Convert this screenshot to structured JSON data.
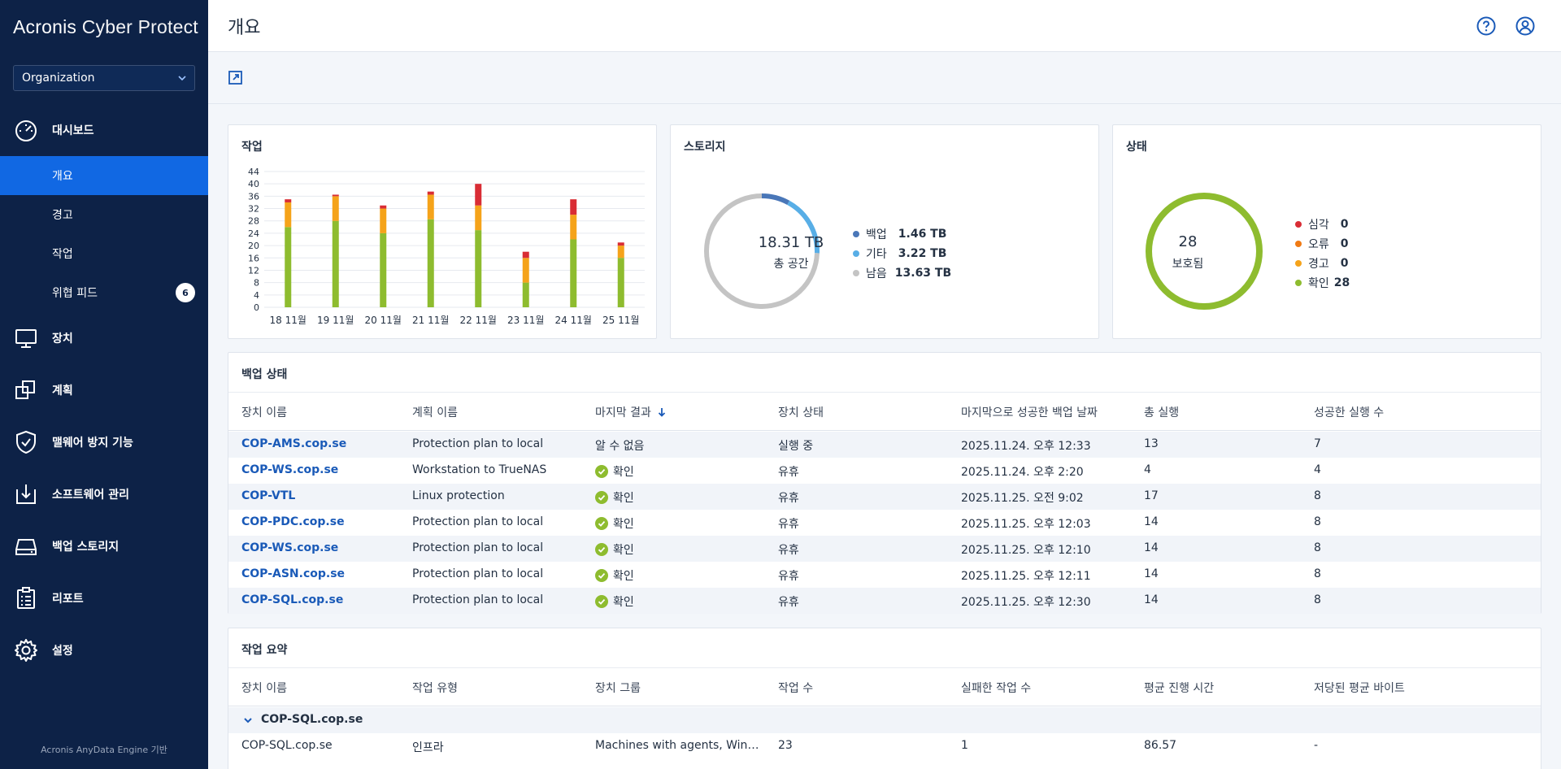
{
  "sidebar": {
    "logo_brand": "Acronis",
    "logo_product": "Cyber Protect",
    "org_select": "Organization",
    "dashboard": "대시보드",
    "sub_items": [
      {
        "label": "개요"
      },
      {
        "label": "경고"
      },
      {
        "label": "작업"
      },
      {
        "label": "위협 피드",
        "badge": "6"
      }
    ],
    "nav": [
      {
        "label": "장치",
        "icon": "monitor-icon"
      },
      {
        "label": "계획",
        "icon": "plans-icon"
      },
      {
        "label": "맬웨어 방지 기능",
        "icon": "shield-icon"
      },
      {
        "label": "소프트웨어 관리",
        "icon": "software-icon"
      },
      {
        "label": "백업 스토리지",
        "icon": "storage-icon"
      },
      {
        "label": "리포트",
        "icon": "clipboard-icon"
      },
      {
        "label": "설정",
        "icon": "gear-icon"
      }
    ],
    "footer": "Acronis AnyData Engine 기반"
  },
  "header": {
    "title": "개요"
  },
  "colors": {
    "sidebar_bg": "#0d2247",
    "active": "#1168e3",
    "ok": "#8ebc2f",
    "warning": "#f5a31a",
    "error": "#f07a14",
    "critical": "#d92d35",
    "backup": "#4a77b8",
    "other": "#58aee6",
    "free": "#c4c4c4",
    "link": "#1a5ab8"
  },
  "jobs_card": {
    "title": "작업",
    "chart_data": {
      "type": "bar",
      "stacked": true,
      "categories": [
        "18 11월",
        "19 11월",
        "20 11월",
        "21 11월",
        "22 11월",
        "23 11월",
        "24 11월",
        "25 11월"
      ],
      "series": [
        {
          "key": "ok",
          "values": [
            26,
            28,
            24,
            28.5,
            25,
            8,
            22,
            16
          ]
        },
        {
          "key": "warning",
          "values": [
            8,
            8,
            8,
            8,
            8,
            8,
            8,
            4
          ]
        },
        {
          "key": "critical",
          "values": [
            1,
            0.5,
            1,
            1,
            7,
            2,
            5,
            1
          ]
        }
      ],
      "yticks": [
        0,
        4,
        8,
        12,
        16,
        20,
        24,
        28,
        32,
        36,
        40,
        44
      ],
      "ylim": [
        0,
        44
      ]
    }
  },
  "storage_card": {
    "title": "스토리지",
    "total_value": "18.31 TB",
    "total_label": "총 공간",
    "chart_data": {
      "type": "pie",
      "donut": true,
      "slices": [
        {
          "label": "백업",
          "value": 1.46,
          "display": "1.46 TB"
        },
        {
          "label": "기타",
          "value": 3.22,
          "display": "3.22 TB"
        },
        {
          "label": "남음",
          "value": 13.63,
          "display": "13.63 TB"
        }
      ]
    }
  },
  "status_card": {
    "title": "상태",
    "center_value": "28",
    "center_label": "보호됨",
    "chart_data": {
      "type": "pie",
      "donut": true,
      "slices": [
        {
          "label": "심각",
          "value": 0
        },
        {
          "label": "오류",
          "value": 0
        },
        {
          "label": "경고",
          "value": 0
        },
        {
          "label": "확인",
          "value": 28
        }
      ]
    }
  },
  "backup_status": {
    "title": "백업 상태",
    "columns": [
      "장치 이름",
      "계획 이름",
      "마지막 결과",
      "장치 상태",
      "마지막으로 성공한 백업 날짜",
      "총 실행",
      "성공한 실행 수"
    ],
    "rows": [
      {
        "device": "COP-AMS.cop.se",
        "plan": "Protection plan to local",
        "result": "알 수 없음",
        "ok": false,
        "state": "실행 중",
        "date": "2025.11.24. 오후 12:33",
        "total": "13",
        "success": "7"
      },
      {
        "device": "COP-WS.cop.se",
        "plan": "Workstation to TrueNAS",
        "result": "확인",
        "ok": true,
        "state": "유휴",
        "date": "2025.11.24. 오후 2:20",
        "total": "4",
        "success": "4"
      },
      {
        "device": "COP-VTL",
        "plan": "Linux protection",
        "result": "확인",
        "ok": true,
        "state": "유휴",
        "date": "2025.11.25. 오전 9:02",
        "total": "17",
        "success": "8"
      },
      {
        "device": "COP-PDC.cop.se",
        "plan": "Protection plan to local",
        "result": "확인",
        "ok": true,
        "state": "유휴",
        "date": "2025.11.25. 오후 12:03",
        "total": "14",
        "success": "8"
      },
      {
        "device": "COP-WS.cop.se",
        "plan": "Protection plan to local",
        "result": "확인",
        "ok": true,
        "state": "유휴",
        "date": "2025.11.25. 오후 12:10",
        "total": "14",
        "success": "8"
      },
      {
        "device": "COP-ASN.cop.se",
        "plan": "Protection plan to local",
        "result": "확인",
        "ok": true,
        "state": "유휴",
        "date": "2025.11.25. 오후 12:11",
        "total": "14",
        "success": "8"
      },
      {
        "device": "COP-SQL.cop.se",
        "plan": "Protection plan to local",
        "result": "확인",
        "ok": true,
        "state": "유휴",
        "date": "2025.11.25. 오후 12:30",
        "total": "14",
        "success": "8"
      }
    ]
  },
  "job_summary": {
    "title": "작업 요약",
    "columns": [
      "장치 이름",
      "작업 유형",
      "장치 그룹",
      "작업 수",
      "실패한 작업 수",
      "평균 진행 시간",
      "저당된 평균 바이트"
    ],
    "group_label": "COP-SQL.cop.se",
    "rows": [
      {
        "device": "COP-SQL.cop.se",
        "type": "인프라",
        "group": "Machines with agents, Windo...",
        "count": "23",
        "failed": "1",
        "avg_time": "86.57",
        "avg_bytes": "-"
      }
    ]
  }
}
